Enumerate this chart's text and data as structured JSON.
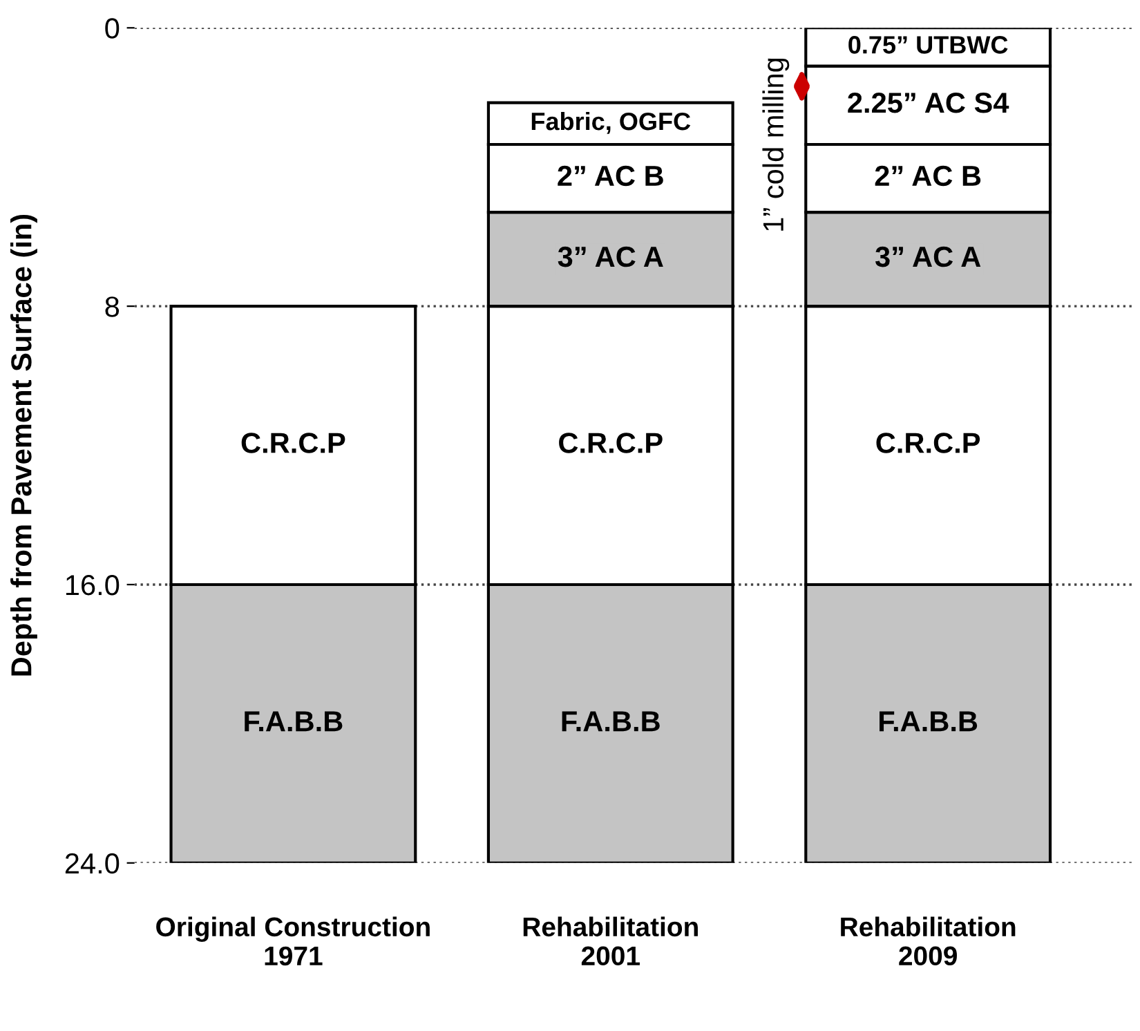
{
  "chart_data": {
    "type": "bar",
    "ylabel": "Depth from Pavement Surface (in)",
    "categories": [
      "Original Construction\n1971",
      "Rehabilitation\n2001",
      "Rehabilitation\n2009"
    ],
    "series": [
      {
        "name": "F.A.B.B",
        "color": "#c4c4c4",
        "base": [
          16,
          16,
          16
        ],
        "values": [
          8,
          8,
          8
        ]
      },
      {
        "name": "C.R.C.P",
        "color": "#ffffff",
        "base": [
          8,
          8,
          8
        ],
        "values": [
          8,
          8,
          8
        ]
      },
      {
        "name": "3” AC A",
        "color": "#c4c4c4",
        "base": [
          null,
          5.3,
          5.3
        ],
        "values": [
          null,
          2.7,
          2.7
        ]
      },
      {
        "name": "2” AC B",
        "color": "#ffffff",
        "base": [
          null,
          3.35,
          3.35
        ],
        "values": [
          null,
          1.95,
          1.95
        ]
      },
      {
        "name": "Fabric, OGFC",
        "color": "#ffffff",
        "base": [
          null,
          2.15,
          null
        ],
        "values": [
          null,
          1.2,
          null
        ]
      },
      {
        "name": "2.25” AC S4",
        "color": "#ffffff",
        "base": [
          null,
          null,
          1.1
        ],
        "values": [
          null,
          null,
          2.25
        ]
      },
      {
        "name": "0.75” UTBWC",
        "color": "#ffffff",
        "base": [
          null,
          null,
          0
        ],
        "values": [
          null,
          null,
          1.1
        ]
      }
    ],
    "annotations": [
      "1” cold milling"
    ],
    "ylim": [
      24,
      0
    ],
    "yticks": [
      0,
      8,
      {
        "value": 16,
        "label": "16.0"
      },
      {
        "value": 24,
        "label": "24.0"
      }
    ],
    "grid": "y",
    "line_style": "dotted",
    "legend": false
  }
}
